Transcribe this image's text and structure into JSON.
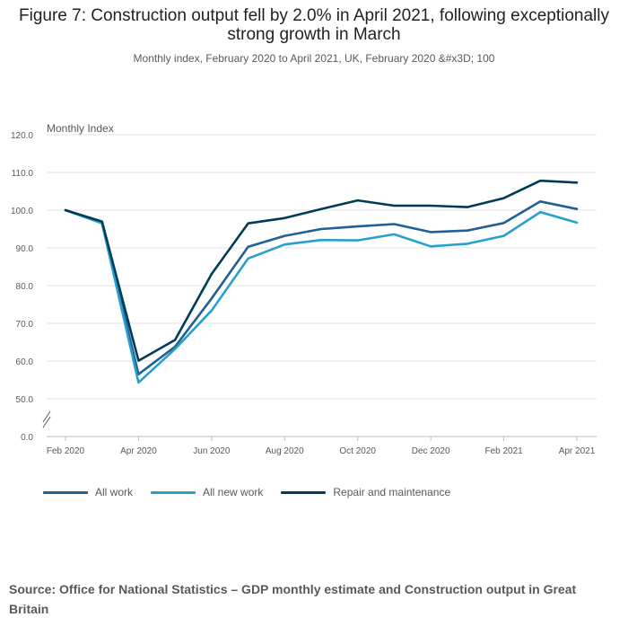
{
  "title": "Figure 7: Construction output fell by 2.0% in April 2021, following exceptionally strong growth in March",
  "subtitle": "Monthly index, February 2020 to April 2021, UK, February 2020 &#x3D; 100",
  "source": "Source: Office for National Statistics – GDP monthly estimate and Construction output in Great Britain",
  "chart_data": {
    "type": "line",
    "title": "Figure 7: Construction output fell by 2.0% in April 2021, following exceptionally strong growth in March",
    "ylabel": "Monthly Index",
    "xlabel": "",
    "ylim": [
      0,
      120
    ],
    "y_ticks": [
      "120.0",
      "110.0",
      "100.0",
      "90.0",
      "80.0",
      "70.0",
      "60.0",
      "50.0",
      "0.0"
    ],
    "y_tick_values": [
      120,
      110,
      100,
      90,
      80,
      70,
      60,
      50,
      0
    ],
    "axis_break": true,
    "grid": true,
    "legend_position": "bottom",
    "categories": [
      "Feb 2020",
      "Mar 2020",
      "Apr 2020",
      "May 2020",
      "Jun 2020",
      "Jul 2020",
      "Aug 2020",
      "Sep 2020",
      "Oct 2020",
      "Nov 2020",
      "Dec 2020",
      "Jan 2021",
      "Feb 2021",
      "Mar 2021",
      "Apr 2021"
    ],
    "x_tick_labels": [
      "Feb 2020",
      "Apr 2020",
      "Jun 2020",
      "Aug 2020",
      "Oct 2020",
      "Dec 2020",
      "Feb 2021",
      "Apr 2021"
    ],
    "series": [
      {
        "name": "All work",
        "color": "#206095",
        "values": [
          100,
          96.8,
          56.5,
          63.8,
          76.6,
          90.3,
          93.2,
          95.0,
          95.7,
          96.3,
          94.2,
          94.6,
          96.6,
          102.3,
          100.3
        ]
      },
      {
        "name": "All new work",
        "color": "#27a0cc",
        "values": [
          100,
          96.5,
          54.3,
          63.2,
          73.4,
          87.2,
          90.9,
          92.1,
          92.0,
          93.6,
          90.4,
          91.1,
          93.2,
          99.5,
          96.7
        ]
      },
      {
        "name": "Repair and maintenance",
        "color": "#003c57",
        "values": [
          100,
          97.0,
          60.1,
          65.6,
          83.1,
          96.5,
          97.9,
          100.3,
          102.6,
          101.2,
          101.2,
          100.8,
          103.2,
          107.8,
          107.3
        ]
      }
    ]
  }
}
